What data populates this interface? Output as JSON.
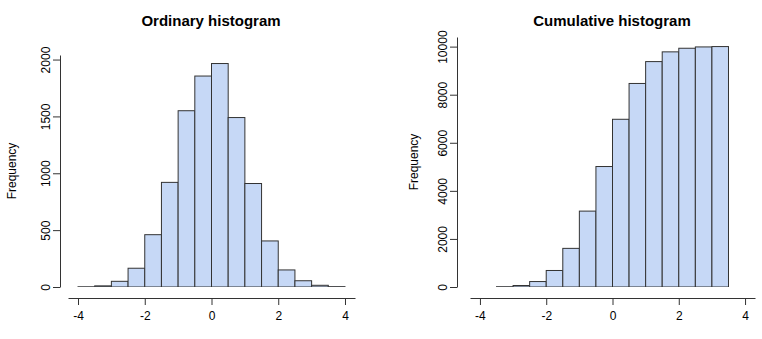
{
  "chart_data": [
    {
      "type": "histogram",
      "title": "Ordinary histogram",
      "ylabel": "Frequency",
      "bins": [
        -4,
        -3.5,
        -3,
        -2.5,
        -2,
        -1.5,
        -1,
        -0.5,
        0,
        0.5,
        1,
        1.5,
        2,
        2.5,
        3,
        3.5,
        4
      ],
      "values": [
        2,
        10,
        50,
        165,
        460,
        920,
        1550,
        1855,
        1965,
        1490,
        910,
        405,
        150,
        55,
        15,
        3
      ],
      "color": "#c6d8f6",
      "xlim": [
        -4.3,
        4.3
      ],
      "xticks": [
        -4,
        -2,
        0,
        2,
        4
      ],
      "ylim": [
        0,
        2040
      ],
      "yticks": [
        0,
        500,
        1000,
        1500,
        2000
      ]
    },
    {
      "type": "histogram",
      "title": "Cumulative histogram",
      "ylabel": "Frequency",
      "bins": [
        -3.5,
        -3,
        -2.5,
        -2,
        -1.5,
        -1,
        -0.5,
        0,
        0.5,
        1,
        1.5,
        2,
        2.5,
        3,
        3.5
      ],
      "values": [
        12,
        62,
        227,
        687,
        1607,
        3157,
        5012,
        6977,
        8467,
        9377,
        9782,
        9932,
        9987,
        10002
      ],
      "color": "#c6d8f6",
      "xlim": [
        -4.3,
        4.3
      ],
      "xticks": [
        -4,
        -2,
        0,
        2,
        4
      ],
      "ylim": [
        0,
        10400
      ],
      "yticks": [
        0,
        2000,
        4000,
        6000,
        8000,
        10000
      ]
    }
  ]
}
